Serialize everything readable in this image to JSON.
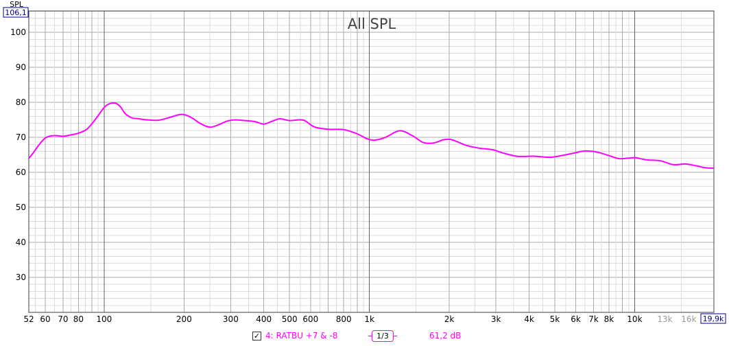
{
  "chart_data": {
    "type": "line",
    "title": "All SPL",
    "ylabel": "SPL",
    "y_top_label": "106,1",
    "x_right_label": "19,9k",
    "xscale": "log",
    "xlim": [
      52,
      19900
    ],
    "ylim": [
      20,
      106.1
    ],
    "grid": true,
    "y_ticks": [
      {
        "v": 30,
        "label": "30"
      },
      {
        "v": 40,
        "label": "40"
      },
      {
        "v": 50,
        "label": "50"
      },
      {
        "v": 60,
        "label": "60"
      },
      {
        "v": 70,
        "label": "70"
      },
      {
        "v": 80,
        "label": "80"
      },
      {
        "v": 90,
        "label": "90"
      },
      {
        "v": 100,
        "label": "100"
      }
    ],
    "x_ticks": [
      {
        "v": 52,
        "label": "52"
      },
      {
        "v": 60,
        "label": "60"
      },
      {
        "v": 70,
        "label": "70"
      },
      {
        "v": 80,
        "label": "80"
      },
      {
        "v": 100,
        "label": "100"
      },
      {
        "v": 200,
        "label": "200"
      },
      {
        "v": 300,
        "label": "300"
      },
      {
        "v": 400,
        "label": "400"
      },
      {
        "v": 500,
        "label": "500"
      },
      {
        "v": 600,
        "label": "600"
      },
      {
        "v": 800,
        "label": "800"
      },
      {
        "v": 1000,
        "label": "1k"
      },
      {
        "v": 2000,
        "label": "2k"
      },
      {
        "v": 3000,
        "label": "3k"
      },
      {
        "v": 4000,
        "label": "4k"
      },
      {
        "v": 5000,
        "label": "5k"
      },
      {
        "v": 6000,
        "label": "6k"
      },
      {
        "v": 7000,
        "label": "7k"
      },
      {
        "v": 8000,
        "label": "8k"
      },
      {
        "v": 10000,
        "label": "10k"
      },
      {
        "v": 13000,
        "label": "13k",
        "muted": true
      },
      {
        "v": 16000,
        "label": "16k",
        "muted": true
      }
    ],
    "series": [
      {
        "name": "4: RATBU +7 & -8",
        "color": "#FF00FF",
        "x": [
          52,
          54,
          57,
          60,
          63,
          66,
          70,
          75,
          80,
          86,
          92,
          100,
          105,
          110,
          115,
          120,
          127,
          135,
          145,
          160,
          175,
          190,
          200,
          215,
          230,
          250,
          270,
          290,
          310,
          340,
          370,
          400,
          430,
          460,
          500,
          540,
          570,
          620,
          700,
          800,
          900,
          980,
          1050,
          1150,
          1300,
          1450,
          1600,
          1750,
          1900,
          2050,
          2300,
          2600,
          2900,
          3200,
          3600,
          4200,
          4800,
          5300,
          5900,
          6500,
          7200,
          8000,
          8800,
          10000,
          11000,
          12500,
          14000,
          15500,
          17000,
          18500,
          19900
        ],
        "y": [
          64,
          65.5,
          68,
          69.8,
          70.4,
          70.5,
          70.3,
          70.7,
          71.2,
          72.3,
          74.8,
          78.5,
          79.6,
          79.8,
          78.8,
          76.8,
          75.6,
          75.3,
          75,
          74.9,
          75.6,
          76.4,
          76.5,
          75.5,
          74,
          72.9,
          73.6,
          74.6,
          75,
          74.8,
          74.5,
          73.8,
          74.6,
          75.3,
          74.8,
          75,
          74.8,
          73,
          72.3,
          72.2,
          71,
          69.6,
          69.2,
          70,
          71.9,
          70.5,
          68.5,
          68.4,
          69.3,
          69.3,
          67.8,
          66.9,
          66.5,
          65.5,
          64.6,
          64.6,
          64.3,
          64.8,
          65.5,
          66.1,
          65.8,
          64.8,
          63.9,
          64.2,
          63.6,
          63.3,
          62.2,
          62.4,
          61.9,
          61.3,
          61.2
        ]
      }
    ]
  },
  "legend": {
    "checkbox_mark": "✓",
    "series_label": "4: RATBU +7 & -8",
    "smoothing_label": "1/3",
    "cursor_value": "61,2 dB",
    "color": "#FF00FF"
  },
  "colors": {
    "grid_major": "#aaaaaa",
    "grid_minor": "#dddddd",
    "decade_line": "#606060",
    "plot_border": "#404040",
    "boxed_label_border": "#000080"
  }
}
